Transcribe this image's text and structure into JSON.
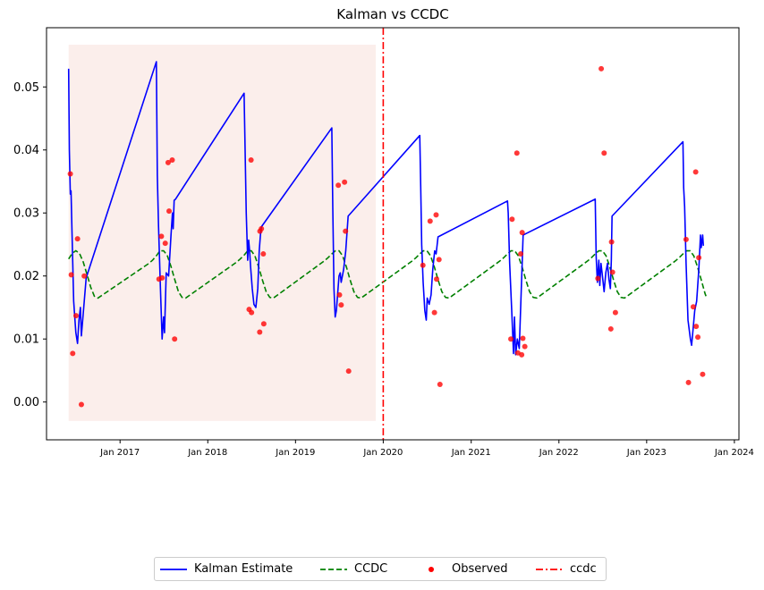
{
  "chart_data": {
    "type": "line",
    "title": "Kalman vs CCDC",
    "xlabel": "",
    "ylabel": "",
    "xlim": [
      "2016-03-01",
      "2024-01-20"
    ],
    "ylim": [
      -0.006,
      0.0594
    ],
    "y_ticks": [
      0.0,
      0.01,
      0.02,
      0.03,
      0.04,
      0.05
    ],
    "y_tick_labels": [
      "0.00",
      "0.01",
      "0.02",
      "0.03",
      "0.04",
      "0.05"
    ],
    "x_ticks": [
      "2017-01-01",
      "2018-01-01",
      "2019-01-01",
      "2020-01-01",
      "2021-01-01",
      "2022-01-01",
      "2023-01-01",
      "2024-01-01"
    ],
    "x_tick_labels": [
      "Jan 2017",
      "Jan 2018",
      "Jan 2019",
      "Jan 2020",
      "Jan 2021",
      "Jan 2022",
      "Jan 2023",
      "Jan 2024"
    ],
    "shaded_region": {
      "x": [
        "2016-06-01",
        "2019-12-01"
      ],
      "y": [
        -0.003,
        0.0567
      ],
      "color": "#f4d4cc"
    },
    "vline": {
      "name": "ccdc",
      "x": "2020-01-01",
      "color": "#ff0000",
      "style": "dashdot"
    },
    "grid": false,
    "legend_position": "bottom-center-outside",
    "series": [
      {
        "name": "Kalman Estimate",
        "type": "line",
        "color": "#0000ff",
        "points": [
          [
            "2016-06-01",
            0.0529
          ],
          [
            "2016-06-04",
            0.04
          ],
          [
            "2016-06-08",
            0.033
          ],
          [
            "2016-06-11",
            0.0335
          ],
          [
            "2016-06-15",
            0.027
          ],
          [
            "2016-06-22",
            0.016
          ],
          [
            "2016-07-01",
            0.011
          ],
          [
            "2016-07-08",
            0.0093
          ],
          [
            "2016-07-14",
            0.013
          ],
          [
            "2016-07-20",
            0.015
          ],
          [
            "2016-07-24",
            0.0105
          ],
          [
            "2016-08-05",
            0.016
          ],
          [
            "2016-08-13",
            0.0197
          ],
          [
            "2017-06-01",
            0.054
          ],
          [
            "2017-06-05",
            0.036
          ],
          [
            "2017-06-10",
            0.028
          ],
          [
            "2017-06-18",
            0.018
          ],
          [
            "2017-06-25",
            0.01
          ],
          [
            "2017-07-01",
            0.0135
          ],
          [
            "2017-07-05",
            0.011
          ],
          [
            "2017-07-12",
            0.0205
          ],
          [
            "2017-07-22",
            0.02
          ],
          [
            "2017-08-01",
            0.0265
          ],
          [
            "2017-08-07",
            0.03
          ],
          [
            "2017-08-10",
            0.0275
          ],
          [
            "2017-08-14",
            0.032
          ],
          [
            "2017-08-20",
            0.0322
          ],
          [
            "2018-06-01",
            0.049
          ],
          [
            "2018-06-10",
            0.03
          ],
          [
            "2018-06-16",
            0.0225
          ],
          [
            "2018-06-20",
            0.0257
          ],
          [
            "2018-06-24",
            0.024
          ],
          [
            "2018-06-28",
            0.0215
          ],
          [
            "2018-07-05",
            0.018
          ],
          [
            "2018-07-12",
            0.0155
          ],
          [
            "2018-07-20",
            0.015
          ],
          [
            "2018-07-28",
            0.018
          ],
          [
            "2018-08-03",
            0.024
          ],
          [
            "2018-08-08",
            0.0265
          ],
          [
            "2018-08-12",
            0.0278
          ],
          [
            "2019-06-01",
            0.0435
          ],
          [
            "2019-06-05",
            0.031
          ],
          [
            "2019-06-10",
            0.018
          ],
          [
            "2019-06-15",
            0.0135
          ],
          [
            "2019-06-20",
            0.0145
          ],
          [
            "2019-06-25",
            0.017
          ],
          [
            "2019-07-01",
            0.02
          ],
          [
            "2019-07-06",
            0.0205
          ],
          [
            "2019-07-10",
            0.019
          ],
          [
            "2019-07-20",
            0.021
          ],
          [
            "2019-07-29",
            0.024
          ],
          [
            "2019-08-08",
            0.0295
          ],
          [
            "2020-06-01",
            0.0423
          ],
          [
            "2020-06-05",
            0.034
          ],
          [
            "2020-06-09",
            0.025
          ],
          [
            "2020-06-15",
            0.019
          ],
          [
            "2020-06-22",
            0.0145
          ],
          [
            "2020-06-28",
            0.013
          ],
          [
            "2020-07-02",
            0.0165
          ],
          [
            "2020-07-10",
            0.0155
          ],
          [
            "2020-07-18",
            0.017
          ],
          [
            "2020-07-25",
            0.021
          ],
          [
            "2020-08-02",
            0.024
          ],
          [
            "2020-08-08",
            0.0235
          ],
          [
            "2020-08-16",
            0.0262
          ],
          [
            "2021-06-01",
            0.0319
          ],
          [
            "2021-06-04",
            0.03
          ],
          [
            "2021-06-10",
            0.022
          ],
          [
            "2021-06-18",
            0.015
          ],
          [
            "2021-06-26",
            0.0077
          ],
          [
            "2021-06-30",
            0.0135
          ],
          [
            "2021-07-05",
            0.0075
          ],
          [
            "2021-07-12",
            0.01
          ],
          [
            "2021-07-20",
            0.0085
          ],
          [
            "2021-08-05",
            0.0265
          ],
          [
            "2022-06-01",
            0.0322
          ],
          [
            "2022-06-05",
            0.023
          ],
          [
            "2022-06-10",
            0.019
          ],
          [
            "2022-06-16",
            0.0225
          ],
          [
            "2022-06-20",
            0.0185
          ],
          [
            "2022-06-25",
            0.022
          ],
          [
            "2022-07-01",
            0.02
          ],
          [
            "2022-07-08",
            0.0175
          ],
          [
            "2022-07-15",
            0.0205
          ],
          [
            "2022-07-22",
            0.022
          ],
          [
            "2022-07-28",
            0.0195
          ],
          [
            "2022-08-03",
            0.018
          ],
          [
            "2022-08-07",
            0.0225
          ],
          [
            "2022-08-10",
            0.0295
          ],
          [
            "2023-06-01",
            0.0413
          ],
          [
            "2023-06-04",
            0.034
          ],
          [
            "2023-06-08",
            0.031
          ],
          [
            "2023-06-14",
            0.022
          ],
          [
            "2023-06-22",
            0.013
          ],
          [
            "2023-07-02",
            0.01
          ],
          [
            "2023-07-07",
            0.009
          ],
          [
            "2023-07-13",
            0.0115
          ],
          [
            "2023-07-20",
            0.0145
          ],
          [
            "2023-07-28",
            0.016
          ],
          [
            "2023-08-06",
            0.021
          ],
          [
            "2023-08-13",
            0.0265
          ],
          [
            "2023-08-16",
            0.0245
          ],
          [
            "2023-08-22",
            0.0265
          ],
          [
            "2023-08-25",
            0.0248
          ]
        ]
      },
      {
        "name": "CCDC",
        "type": "line",
        "style": "dashed",
        "color": "#008000",
        "points": [
          [
            "2016-06-01",
            0.0227
          ],
          [
            "2016-06-16",
            0.0236
          ],
          [
            "2016-07-01",
            0.024
          ],
          [
            "2016-07-16",
            0.0236
          ],
          [
            "2016-08-01",
            0.0222
          ],
          [
            "2016-08-16",
            0.0203
          ],
          [
            "2016-09-01",
            0.0182
          ],
          [
            "2016-09-16",
            0.0168
          ],
          [
            "2016-10-01",
            0.0165
          ],
          [
            "2017-05-01",
            0.022
          ],
          [
            "2017-05-16",
            0.0225
          ],
          [
            "2017-06-01",
            0.0232
          ],
          [
            "2017-06-16",
            0.024
          ],
          [
            "2017-07-01",
            0.024
          ],
          [
            "2017-07-16",
            0.0233
          ],
          [
            "2017-08-01",
            0.0215
          ],
          [
            "2017-08-16",
            0.0195
          ],
          [
            "2017-09-01",
            0.0175
          ],
          [
            "2017-09-16",
            0.0166
          ],
          [
            "2017-10-01",
            0.0165
          ],
          [
            "2018-05-01",
            0.0222
          ],
          [
            "2018-05-16",
            0.0227
          ],
          [
            "2018-06-01",
            0.0233
          ],
          [
            "2018-06-16",
            0.024
          ],
          [
            "2018-07-01",
            0.024
          ],
          [
            "2018-07-16",
            0.0232
          ],
          [
            "2018-08-01",
            0.0214
          ],
          [
            "2018-08-16",
            0.0194
          ],
          [
            "2018-09-01",
            0.0175
          ],
          [
            "2018-09-16",
            0.0166
          ],
          [
            "2018-10-01",
            0.0165
          ],
          [
            "2019-05-01",
            0.0224
          ],
          [
            "2019-05-16",
            0.0229
          ],
          [
            "2019-06-01",
            0.0235
          ],
          [
            "2019-06-16",
            0.024
          ],
          [
            "2019-07-01",
            0.024
          ],
          [
            "2019-07-16",
            0.0232
          ],
          [
            "2019-08-01",
            0.0214
          ],
          [
            "2019-08-16",
            0.0194
          ],
          [
            "2019-09-01",
            0.0175
          ],
          [
            "2019-09-16",
            0.0166
          ],
          [
            "2019-10-01",
            0.0165
          ],
          [
            "2020-05-01",
            0.0224
          ],
          [
            "2020-05-16",
            0.0229
          ],
          [
            "2020-06-01",
            0.0235
          ],
          [
            "2020-06-16",
            0.024
          ],
          [
            "2020-07-01",
            0.024
          ],
          [
            "2020-07-16",
            0.0232
          ],
          [
            "2020-08-01",
            0.0214
          ],
          [
            "2020-08-16",
            0.0194
          ],
          [
            "2020-09-01",
            0.0175
          ],
          [
            "2020-09-16",
            0.0166
          ],
          [
            "2020-10-01",
            0.0165
          ],
          [
            "2021-05-01",
            0.0224
          ],
          [
            "2021-05-16",
            0.0229
          ],
          [
            "2021-06-01",
            0.0235
          ],
          [
            "2021-06-16",
            0.024
          ],
          [
            "2021-07-01",
            0.024
          ],
          [
            "2021-07-16",
            0.0232
          ],
          [
            "2021-08-01",
            0.0214
          ],
          [
            "2021-08-16",
            0.0194
          ],
          [
            "2021-09-01",
            0.0175
          ],
          [
            "2021-09-16",
            0.0166
          ],
          [
            "2021-10-01",
            0.0165
          ],
          [
            "2022-05-01",
            0.0224
          ],
          [
            "2022-05-16",
            0.0229
          ],
          [
            "2022-06-01",
            0.0235
          ],
          [
            "2022-06-16",
            0.024
          ],
          [
            "2022-07-01",
            0.024
          ],
          [
            "2022-07-16",
            0.0232
          ],
          [
            "2022-08-01",
            0.0214
          ],
          [
            "2022-08-16",
            0.0194
          ],
          [
            "2022-09-01",
            0.0175
          ],
          [
            "2022-09-16",
            0.0166
          ],
          [
            "2022-10-01",
            0.0165
          ],
          [
            "2023-05-01",
            0.0224
          ],
          [
            "2023-05-16",
            0.0229
          ],
          [
            "2023-06-01",
            0.0235
          ],
          [
            "2023-06-16",
            0.024
          ],
          [
            "2023-07-01",
            0.024
          ],
          [
            "2023-07-16",
            0.0232
          ],
          [
            "2023-08-01",
            0.0214
          ],
          [
            "2023-08-16",
            0.0194
          ],
          [
            "2023-09-01",
            0.0172
          ],
          [
            "2023-09-05",
            0.0168
          ]
        ]
      },
      {
        "name": "Observed",
        "type": "scatter",
        "color": "#ff0000",
        "points": [
          [
            "2016-06-08",
            0.0362
          ],
          [
            "2016-06-12",
            0.0202
          ],
          [
            "2016-06-18",
            0.0077
          ],
          [
            "2016-07-02",
            0.0137
          ],
          [
            "2016-07-08",
            0.0259
          ],
          [
            "2016-07-24",
            -0.0004
          ],
          [
            "2016-08-05",
            0.02
          ],
          [
            "2017-06-12",
            0.0195
          ],
          [
            "2017-06-22",
            0.0263
          ],
          [
            "2017-06-25",
            0.0197
          ],
          [
            "2017-07-08",
            0.0252
          ],
          [
            "2017-07-20",
            0.038
          ],
          [
            "2017-07-24",
            0.0303
          ],
          [
            "2017-08-06",
            0.0384
          ],
          [
            "2017-08-16",
            0.01
          ],
          [
            "2018-06-22",
            0.0147
          ],
          [
            "2018-06-30",
            0.0384
          ],
          [
            "2018-07-02",
            0.0142
          ],
          [
            "2018-08-05",
            0.0111
          ],
          [
            "2018-08-06",
            0.0271
          ],
          [
            "2018-08-12",
            0.0275
          ],
          [
            "2018-08-20",
            0.0235
          ],
          [
            "2018-08-22",
            0.0124
          ],
          [
            "2019-06-28",
            0.0344
          ],
          [
            "2019-07-03",
            0.017
          ],
          [
            "2019-07-10",
            0.0154
          ],
          [
            "2019-07-24",
            0.0349
          ],
          [
            "2019-07-28",
            0.0271
          ],
          [
            "2019-08-10",
            0.0049
          ],
          [
            "2020-06-14",
            0.0217
          ],
          [
            "2020-07-14",
            0.0287
          ],
          [
            "2020-08-01",
            0.0142
          ],
          [
            "2020-08-08",
            0.0297
          ],
          [
            "2020-08-10",
            0.0195
          ],
          [
            "2020-08-20",
            0.0226
          ],
          [
            "2020-08-24",
            0.0028
          ],
          [
            "2021-06-15",
            0.01
          ],
          [
            "2021-06-20",
            0.029
          ],
          [
            "2021-07-10",
            0.0395
          ],
          [
            "2021-07-14",
            0.0078
          ],
          [
            "2021-07-26",
            0.0235
          ],
          [
            "2021-07-30",
            0.0075
          ],
          [
            "2021-08-01",
            0.0269
          ],
          [
            "2021-08-04",
            0.0101
          ],
          [
            "2021-08-12",
            0.0088
          ],
          [
            "2022-06-12",
            0.0196
          ],
          [
            "2022-06-26",
            0.0529
          ],
          [
            "2022-07-08",
            0.0395
          ],
          [
            "2022-08-05",
            0.0116
          ],
          [
            "2022-08-08",
            0.0254
          ],
          [
            "2022-08-12",
            0.0206
          ],
          [
            "2022-08-24",
            0.0142
          ],
          [
            "2023-06-14",
            0.0258
          ],
          [
            "2023-06-24",
            0.0031
          ],
          [
            "2023-07-14",
            0.0151
          ],
          [
            "2023-07-24",
            0.0365
          ],
          [
            "2023-07-26",
            0.012
          ],
          [
            "2023-08-02",
            0.0103
          ],
          [
            "2023-08-06",
            0.0229
          ],
          [
            "2023-08-22",
            0.0044
          ]
        ]
      }
    ]
  },
  "legend": {
    "items": [
      {
        "label": "Kalman Estimate",
        "kind": "line",
        "color": "#0000ff"
      },
      {
        "label": "CCDC",
        "kind": "dashed",
        "color": "#008000"
      },
      {
        "label": "Observed",
        "kind": "dot",
        "color": "#ff0000"
      },
      {
        "label": "ccdc",
        "kind": "dashdot",
        "color": "#ff0000"
      }
    ]
  }
}
